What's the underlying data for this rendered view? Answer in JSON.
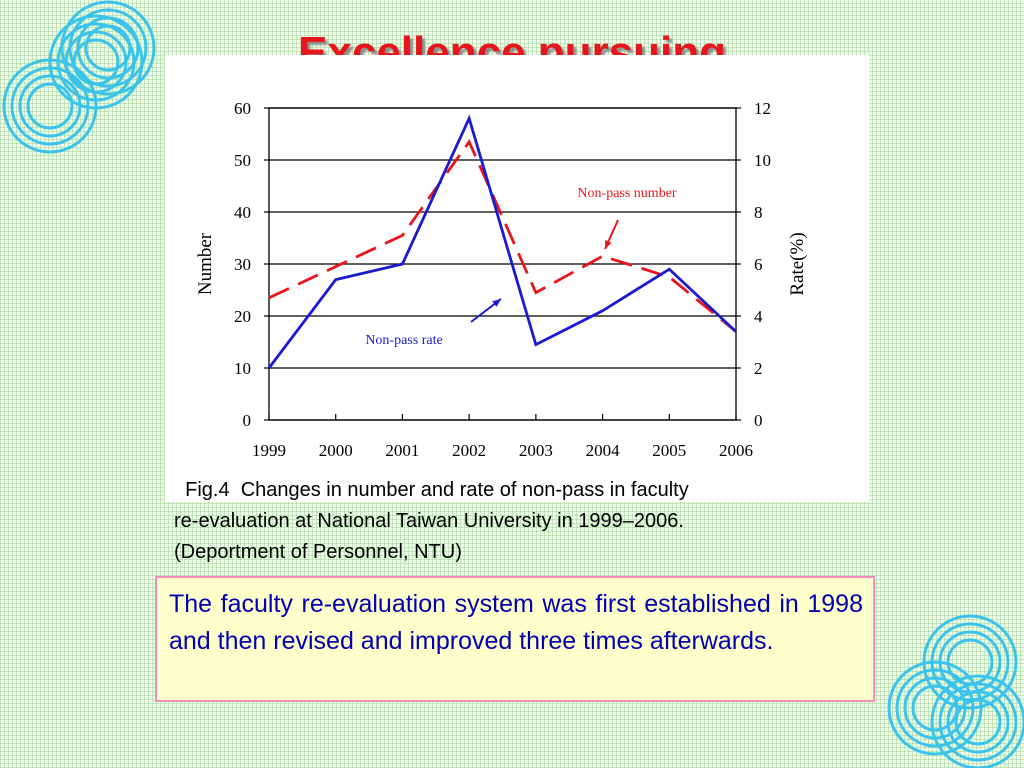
{
  "slide": {
    "title": "Excellence pursuing",
    "caption_lines": [
      "  Fig.4  Changes in number and rate of non-pass in faculty",
      "re-evaluation at National Taiwan University in 1999–2006.",
      "(Deportment of Personnel, NTU)"
    ],
    "body_text": "The faculty re-evaluation system was first established in 1998 and then revised and improved three times afterwards.",
    "colors": {
      "title": "#e8161c",
      "body_text": "#0000b0",
      "box_border": "#f08fbf",
      "box_fill": "#ffffcc",
      "decor_rings": "#3cc3ec"
    },
    "decor_icons": [
      "concentric-rings-top-left",
      "concentric-rings-bottom-right"
    ]
  },
  "chart_data": {
    "type": "line",
    "title": "",
    "categories": [
      "1999",
      "2000",
      "2001",
      "2002",
      "2003",
      "2004",
      "2005",
      "2006"
    ],
    "ylabel": "Number",
    "y2label": "Rate(%)",
    "ylim": [
      0,
      60
    ],
    "y2lim": [
      0,
      12
    ],
    "yticks": [
      0,
      10,
      20,
      30,
      40,
      50,
      60
    ],
    "y2ticks": [
      0,
      2,
      4,
      6,
      8,
      10,
      12
    ],
    "grid": true,
    "series": [
      {
        "name": "Non-pass number",
        "axis": "left",
        "color": "#e8161c",
        "style": "dashed",
        "values": [
          23.5,
          29.5,
          35.5,
          53.5,
          24.5,
          31.5,
          27.5,
          17.0
        ]
      },
      {
        "name": "Non-pass rate",
        "axis": "right",
        "color": "#1a1ad0",
        "style": "solid",
        "values": [
          2.0,
          5.4,
          6.0,
          11.6,
          2.9,
          4.2,
          5.8,
          3.4
        ]
      }
    ],
    "annotations": [
      {
        "text": "Non-pass number",
        "points_to": "Non-pass number",
        "color": "#e8161c"
      },
      {
        "text": "Non-pass rate",
        "points_to": "Non-pass rate",
        "color": "#1a1ad0"
      }
    ]
  }
}
